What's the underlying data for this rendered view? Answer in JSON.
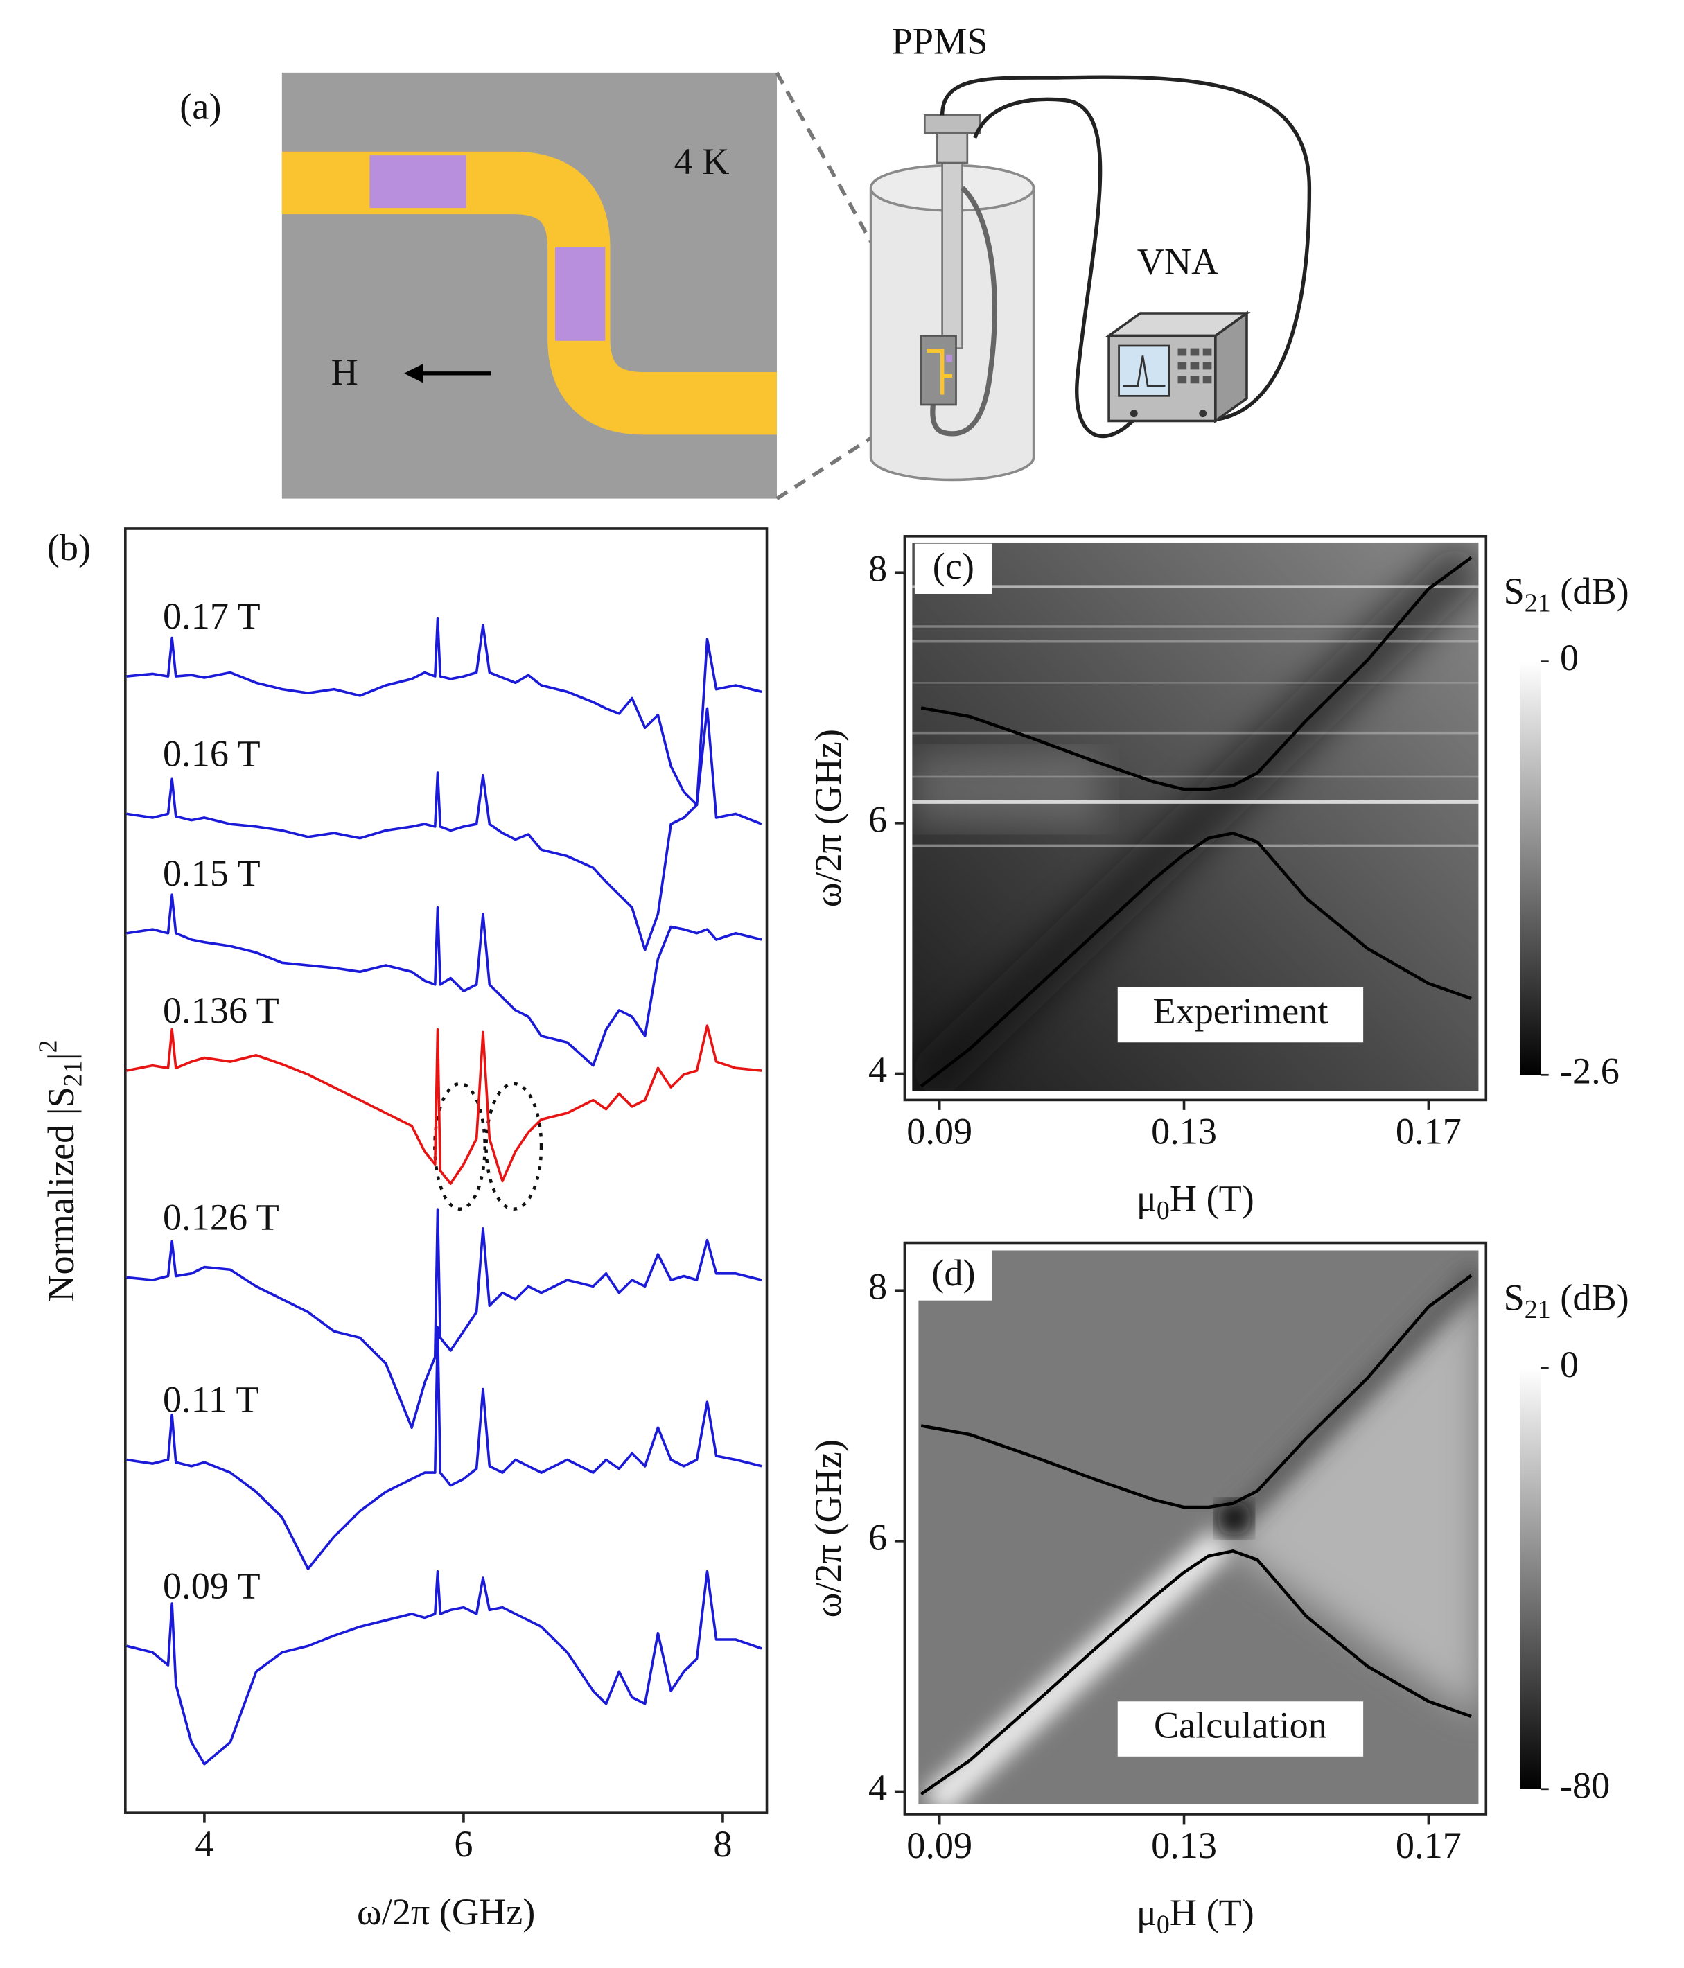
{
  "panel_a": {
    "label": "(a)",
    "temperature": "4 K",
    "field": "H",
    "instrument_1": "PPMS",
    "instrument_2": "VNA"
  },
  "chart_data": [
    {
      "type": "line",
      "panel": "(b)",
      "x": [
        3.4,
        3.6,
        3.72,
        3.75,
        3.78,
        3.9,
        4.0,
        4.2,
        4.4,
        4.6,
        4.8,
        5.0,
        5.2,
        5.4,
        5.6,
        5.7,
        5.78,
        5.8,
        5.82,
        5.9,
        6.0,
        6.1,
        6.15,
        6.2,
        6.3,
        6.4,
        6.5,
        6.6,
        6.8,
        7.0,
        7.1,
        7.2,
        7.3,
        7.4,
        7.5,
        7.6,
        7.7,
        7.8,
        7.88,
        7.95,
        8.1,
        8.3
      ],
      "series": [
        {
          "name": "0.17 T",
          "color": "#1a1ad8",
          "values": [
            88.5,
            88.7,
            88.5,
            91.5,
            88.5,
            88.6,
            88.4,
            88.8,
            88.0,
            87.5,
            87.2,
            87.5,
            87.0,
            87.8,
            88.3,
            88.8,
            88.5,
            93.0,
            88.5,
            88.3,
            88.5,
            88.8,
            92.5,
            88.8,
            88.4,
            88.0,
            88.6,
            87.8,
            87.3,
            86.5,
            86.0,
            85.6,
            86.8,
            84.5,
            85.5,
            81.5,
            79.5,
            78.5,
            91.4,
            87.5,
            87.8,
            87.3
          ]
        },
        {
          "name": "0.16 T",
          "color": "#1a1ad8",
          "values": [
            77.8,
            77.5,
            77.8,
            80.5,
            77.6,
            77.3,
            77.5,
            77.0,
            76.8,
            76.5,
            76.0,
            76.3,
            75.9,
            76.5,
            76.8,
            77.0,
            76.8,
            81.0,
            76.8,
            76.5,
            76.8,
            77.0,
            80.8,
            77.0,
            76.3,
            75.8,
            76.2,
            75.0,
            74.5,
            73.6,
            72.5,
            71.5,
            70.5,
            67.2,
            70.0,
            77.0,
            77.5,
            78.5,
            86.0,
            77.5,
            77.8,
            77.0
          ]
        },
        {
          "name": "0.15 T",
          "color": "#1a1ad8",
          "values": [
            68.5,
            68.8,
            68.5,
            71.5,
            68.5,
            68.0,
            67.8,
            67.5,
            67.0,
            66.2,
            66.0,
            65.8,
            65.5,
            66.0,
            65.5,
            64.8,
            64.5,
            70.5,
            64.5,
            65.0,
            64.0,
            64.5,
            70.0,
            64.5,
            63.5,
            62.5,
            62.0,
            60.5,
            60.0,
            58.2,
            61.0,
            62.5,
            62.0,
            60.5,
            66.5,
            69.0,
            68.8,
            68.5,
            68.8,
            68.0,
            68.5,
            68.0
          ]
        },
        {
          "name": "0.136 T",
          "color": "#e81414",
          "values": [
            57.8,
            58.2,
            58.0,
            61.0,
            58.0,
            58.5,
            58.8,
            58.5,
            59.0,
            58.3,
            57.5,
            56.5,
            55.5,
            54.5,
            53.5,
            51.5,
            50.5,
            61.0,
            50.0,
            49.0,
            50.5,
            52.5,
            60.8,
            52.5,
            49.2,
            51.5,
            53.0,
            54.0,
            54.5,
            55.5,
            54.8,
            56.0,
            55.0,
            55.5,
            58.0,
            56.5,
            57.5,
            57.8,
            61.3,
            58.5,
            58.0,
            57.8
          ]
        },
        {
          "name": "0.126 T",
          "color": "#1a1ad8",
          "values": [
            41.7,
            41.5,
            41.8,
            44.5,
            41.8,
            42.0,
            42.5,
            42.3,
            41.0,
            40.0,
            39.0,
            37.5,
            37.0,
            35.0,
            30.0,
            33.5,
            35.5,
            47.0,
            37.0,
            36.0,
            37.5,
            39.0,
            45.5,
            39.5,
            40.5,
            40.0,
            41.0,
            40.5,
            41.5,
            41.0,
            42.0,
            40.5,
            41.5,
            41.0,
            43.5,
            41.5,
            41.8,
            41.5,
            44.6,
            42.0,
            42.0,
            41.5
          ]
        },
        {
          "name": "0.11 T",
          "color": "#1a1ad8",
          "values": [
            27.5,
            27.2,
            27.5,
            31.0,
            27.3,
            27.0,
            27.3,
            26.5,
            25.0,
            23.0,
            19.0,
            21.5,
            23.5,
            25.0,
            26.0,
            26.5,
            26.5,
            37.8,
            26.5,
            25.5,
            26.0,
            26.8,
            33.0,
            27.0,
            26.5,
            27.5,
            27.0,
            26.5,
            27.5,
            26.5,
            27.5,
            26.8,
            28.0,
            27.0,
            30.0,
            27.5,
            27.0,
            27.5,
            32.0,
            27.8,
            27.5,
            27.0
          ]
        },
        {
          "name": "0.09 T",
          "color": "#1a1ad8",
          "values": [
            13.0,
            12.5,
            11.5,
            16.3,
            10.0,
            5.5,
            3.8,
            5.5,
            11.0,
            12.5,
            13.0,
            13.8,
            14.5,
            15.0,
            15.5,
            15.2,
            15.5,
            18.8,
            15.5,
            15.8,
            16.0,
            15.5,
            18.3,
            15.8,
            16.0,
            15.5,
            15.0,
            14.5,
            12.5,
            9.5,
            8.5,
            11.0,
            9.0,
            8.5,
            14.0,
            9.5,
            11.0,
            12.0,
            18.8,
            13.5,
            13.5,
            12.8
          ]
        }
      ],
      "xlim": [
        3.39,
        8.34
      ],
      "xticks": [
        4,
        6,
        8
      ],
      "ylim": [
        0,
        100
      ],
      "xlabel": "ω/2π (GHz)",
      "ylabel": [
        "Normalized |S",
        "21",
        "|",
        "2"
      ]
    },
    {
      "type": "heatmap",
      "panel": "(c)",
      "annotation": "Experiment",
      "x": [
        0.087,
        0.095,
        0.105,
        0.115,
        0.125,
        0.13,
        0.134,
        0.138,
        0.142,
        0.15,
        0.16,
        0.17,
        0.177
      ],
      "series": [
        {
          "color": "#000000",
          "values": [
            6.92,
            6.85,
            6.68,
            6.5,
            6.33,
            6.27,
            6.27,
            6.3,
            6.4,
            6.82,
            7.3,
            7.87,
            8.12
          ]
        },
        {
          "color": "#000000",
          "values": [
            3.9,
            4.2,
            4.65,
            5.1,
            5.55,
            5.75,
            5.88,
            5.92,
            5.85,
            5.4,
            5.0,
            4.72,
            4.6
          ]
        }
      ],
      "xlim": [
        0.0843,
        0.1794
      ],
      "xticks": [
        0.09,
        0.13,
        0.17
      ],
      "ylim": [
        3.79,
        8.29
      ],
      "yticks": [
        4,
        6,
        8
      ],
      "xlabel": [
        "μ",
        "0",
        "H (T)"
      ],
      "ylabel": "ω/2π (GHz)",
      "colorbar": {
        "label": [
          "S",
          "21",
          " (dB)"
        ],
        "clim": [
          -2.6,
          0
        ],
        "ticks": [
          -2.6,
          0
        ]
      }
    },
    {
      "type": "heatmap",
      "panel": "(d)",
      "annotation": "Calculation",
      "x": [
        0.087,
        0.095,
        0.105,
        0.115,
        0.125,
        0.13,
        0.134,
        0.138,
        0.142,
        0.15,
        0.16,
        0.17,
        0.177
      ],
      "series": [
        {
          "color": "#000000",
          "values": [
            6.92,
            6.85,
            6.68,
            6.5,
            6.33,
            6.27,
            6.27,
            6.3,
            6.4,
            6.82,
            7.3,
            7.87,
            8.12
          ]
        },
        {
          "color": "#000000",
          "values": [
            3.98,
            4.25,
            4.68,
            5.12,
            5.55,
            5.75,
            5.88,
            5.92,
            5.85,
            5.4,
            5.0,
            4.72,
            4.6
          ]
        }
      ],
      "xlim": [
        0.0843,
        0.1794
      ],
      "xticks": [
        0.09,
        0.13,
        0.17
      ],
      "ylim": [
        3.82,
        8.38
      ],
      "yticks": [
        4,
        6,
        8
      ],
      "xlabel": [
        "μ",
        "0",
        "H (T)"
      ],
      "ylabel": "ω/2π (GHz)",
      "colorbar": {
        "label": [
          "S",
          "21",
          " (dB)"
        ],
        "clim": [
          -80,
          0
        ],
        "ticks": [
          -80,
          0
        ]
      }
    }
  ]
}
